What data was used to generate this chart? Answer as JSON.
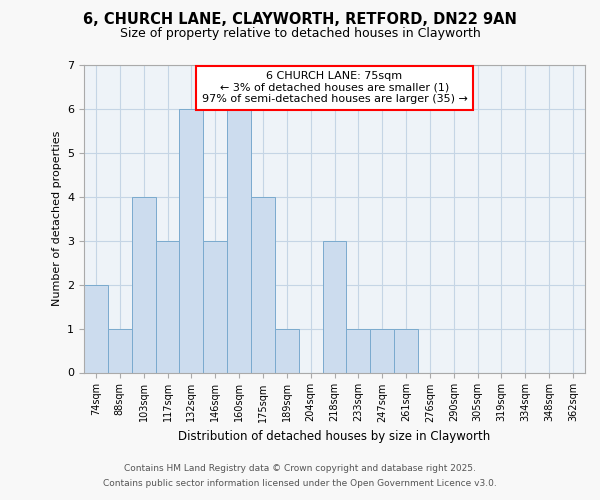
{
  "title_line1": "6, CHURCH LANE, CLAYWORTH, RETFORD, DN22 9AN",
  "title_line2": "Size of property relative to detached houses in Clayworth",
  "xlabel": "Distribution of detached houses by size in Clayworth",
  "ylabel": "Number of detached properties",
  "categories": [
    "74sqm",
    "88sqm",
    "103sqm",
    "117sqm",
    "132sqm",
    "146sqm",
    "160sqm",
    "175sqm",
    "189sqm",
    "204sqm",
    "218sqm",
    "233sqm",
    "247sqm",
    "261sqm",
    "276sqm",
    "290sqm",
    "305sqm",
    "319sqm",
    "334sqm",
    "348sqm",
    "362sqm"
  ],
  "values": [
    2,
    1,
    4,
    3,
    6,
    3,
    6,
    4,
    1,
    0,
    3,
    1,
    1,
    1,
    0,
    0,
    0,
    0,
    0,
    0,
    0
  ],
  "bar_color": "#ccdcee",
  "bar_edge_color": "#7aaace",
  "ylim": [
    0,
    7
  ],
  "yticks": [
    0,
    1,
    2,
    3,
    4,
    5,
    6,
    7
  ],
  "annotation_text": "6 CHURCH LANE: 75sqm\n← 3% of detached houses are smaller (1)\n97% of semi-detached houses are larger (35) →",
  "footer_line1": "Contains HM Land Registry data © Crown copyright and database right 2025.",
  "footer_line2": "Contains public sector information licensed under the Open Government Licence v3.0.",
  "fig_bg_color": "#f8f8f8",
  "plot_bg_color": "#eef3f8",
  "grid_color": "#c5d5e5",
  "spine_color": "#aaaaaa"
}
